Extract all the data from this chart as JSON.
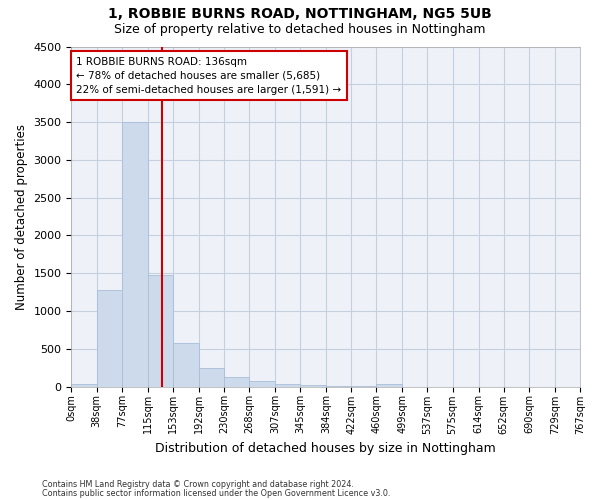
{
  "title": "1, ROBBIE BURNS ROAD, NOTTINGHAM, NG5 5UB",
  "subtitle": "Size of property relative to detached houses in Nottingham",
  "xlabel": "Distribution of detached houses by size in Nottingham",
  "ylabel": "Number of detached properties",
  "bar_color": "#ccdaeb",
  "bar_edge_color": "#aabdd8",
  "grid_color": "#c5cfe0",
  "background_color": "#eef2f8",
  "vline_x": 136,
  "vline_color": "#cc0000",
  "annotation_box_color": "#cc0000",
  "annotation_text": "1 ROBBIE BURNS ROAD: 136sqm\n← 78% of detached houses are smaller (5,685)\n22% of semi-detached houses are larger (1,591) →",
  "footnote1": "Contains HM Land Registry data © Crown copyright and database right 2024.",
  "footnote2": "Contains public sector information licensed under the Open Government Licence v3.0.",
  "bin_edges": [
    0,
    38,
    77,
    115,
    153,
    192,
    230,
    268,
    307,
    345,
    384,
    422,
    460,
    499,
    537,
    575,
    614,
    652,
    690,
    729,
    767
  ],
  "bin_counts": [
    30,
    1280,
    3500,
    1470,
    570,
    240,
    130,
    75,
    40,
    20,
    10,
    5,
    40,
    0,
    0,
    0,
    0,
    0,
    0,
    0
  ],
  "ylim": [
    0,
    4500
  ],
  "yticks": [
    0,
    500,
    1000,
    1500,
    2000,
    2500,
    3000,
    3500,
    4000,
    4500
  ]
}
